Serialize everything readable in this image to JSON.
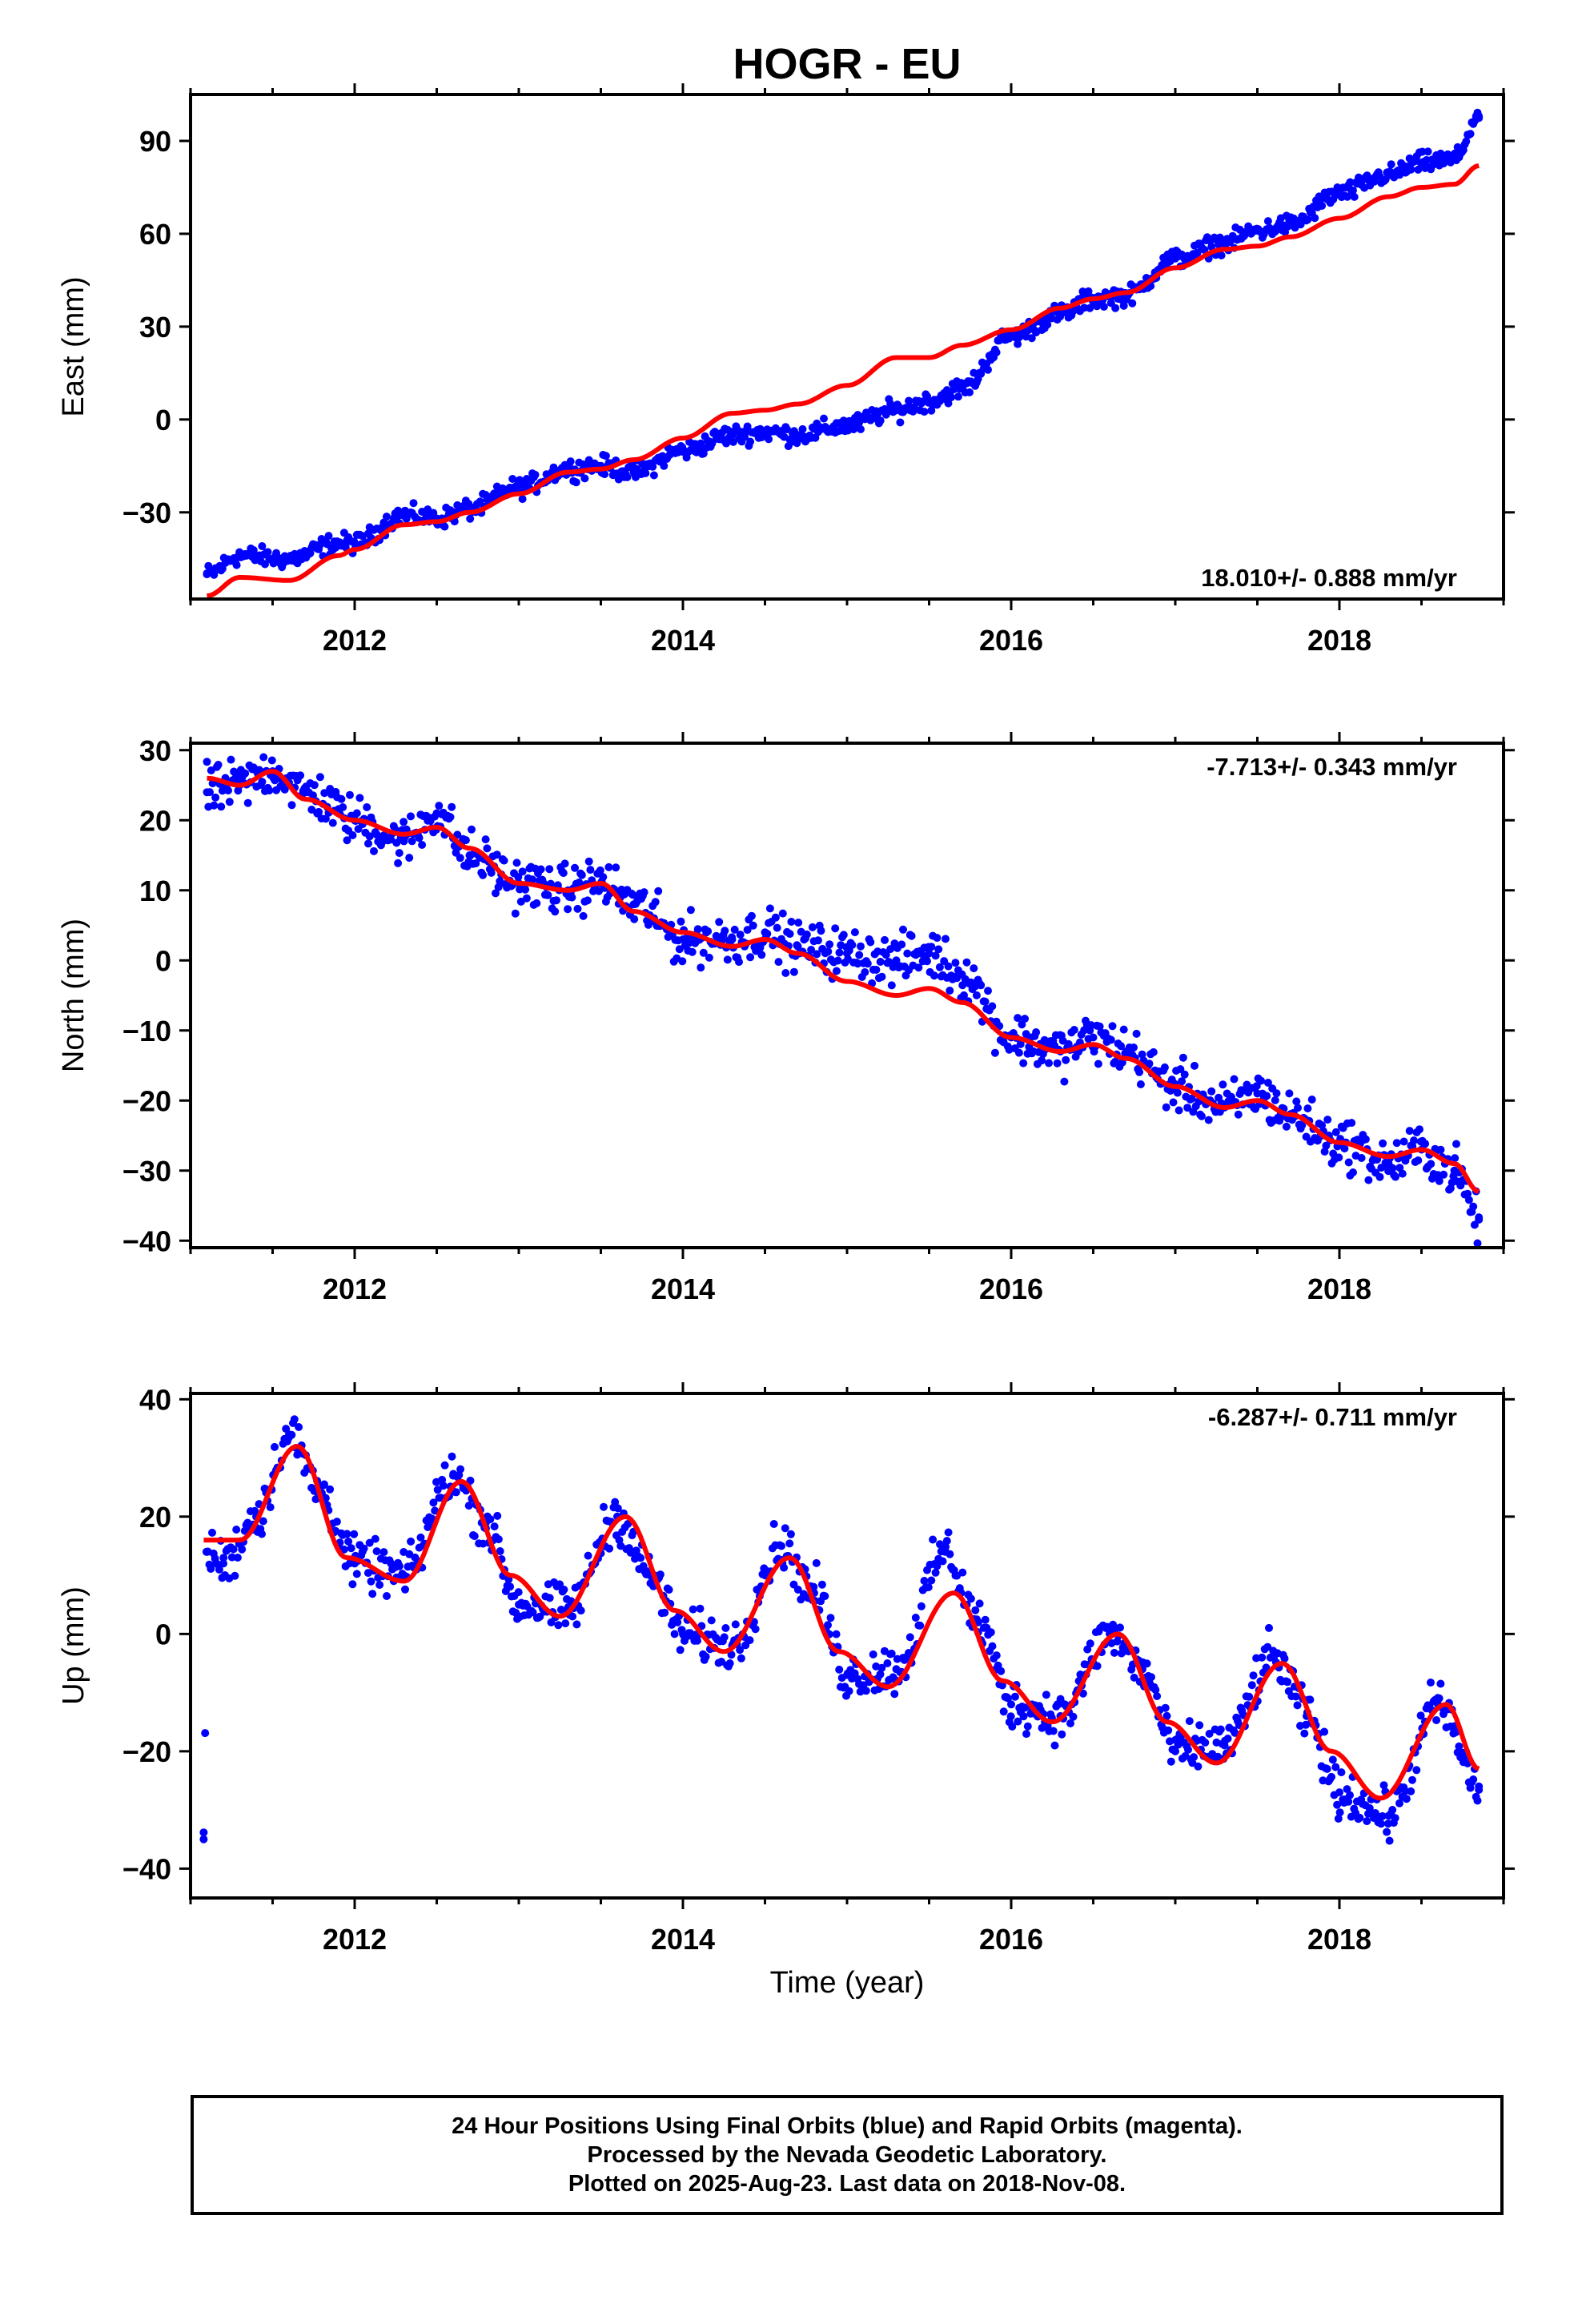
{
  "chart_data": {
    "type": "scatter",
    "title": "HOGR - EU",
    "xlabel": "Time (year)",
    "xlim": [
      2011.0,
      2019.0
    ],
    "x_ticks": [
      "2012",
      "2014",
      "2016",
      "2018"
    ],
    "panels": [
      {
        "ylabel": "East (mm)",
        "ylim": [
          -58,
          105
        ],
        "y_ticks": [
          "90",
          "60",
          "30",
          "0",
          "−30"
        ],
        "rate_label": "18.010+/- 0.888 mm/yr",
        "series": [
          {
            "kind": "scatter",
            "color": "#0000ff",
            "x": [
              2011.1,
              2011.3,
              2011.6,
              2011.9,
              2012.0,
              2012.3,
              2012.5,
              2012.7,
              2013.0,
              2013.3,
              2013.5,
              2013.7,
              2014.0,
              2014.3,
              2014.5,
              2014.7,
              2015.0,
              2015.3,
              2015.5,
              2015.7,
              2016.0,
              2016.3,
              2016.5,
              2016.7,
              2017.0,
              2017.3,
              2017.5,
              2017.7,
              2018.0,
              2018.3,
              2018.5,
              2018.7,
              2018.85
            ],
            "y": [
              -50,
              -44,
              -45,
              -40,
              -40,
              -31,
              -32,
              -29,
              -22,
              -16,
              -15,
              -17,
              -10,
              -5,
              -4,
              -5,
              -2,
              3,
              6,
              10,
              27,
              34,
              39,
              40,
              52,
              57,
              61,
              63,
              73,
              79,
              83,
              84,
              98
            ]
          },
          {
            "kind": "line",
            "color": "#ff0000",
            "x": [
              2011.1,
              2011.3,
              2011.6,
              2011.9,
              2012.0,
              2012.3,
              2012.5,
              2012.7,
              2013.0,
              2013.3,
              2013.5,
              2013.7,
              2014.0,
              2014.3,
              2014.5,
              2014.7,
              2015.0,
              2015.3,
              2015.5,
              2015.7,
              2016.0,
              2016.3,
              2016.5,
              2016.7,
              2017.0,
              2017.3,
              2017.5,
              2017.7,
              2018.0,
              2018.3,
              2018.5,
              2018.7,
              2018.85
            ],
            "y": [
              -57,
              -51,
              -52,
              -44,
              -42,
              -34,
              -33,
              -30,
              -24,
              -17,
              -16,
              -13,
              -6,
              2,
              3,
              5,
              11,
              20,
              20,
              24,
              29,
              36,
              39,
              41,
              49,
              55,
              56,
              59,
              65,
              72,
              75,
              76,
              82
            ]
          }
        ]
      },
      {
        "ylabel": "North (mm)",
        "ylim": [
          -41,
          31
        ],
        "y_ticks": [
          "30",
          "20",
          "10",
          "0",
          "−10",
          "−20",
          "−30",
          "−40"
        ],
        "rate_label": "-7.713+/- 0.343 mm/yr",
        "series": [
          {
            "kind": "scatter",
            "color": "#0000ff",
            "x": [
              2011.1,
              2011.3,
              2011.5,
              2011.7,
              2012.0,
              2012.3,
              2012.5,
              2012.7,
              2013.0,
              2013.3,
              2013.5,
              2013.7,
              2014.0,
              2014.3,
              2014.5,
              2014.7,
              2015.0,
              2015.3,
              2015.5,
              2015.7,
              2016.0,
              2016.3,
              2016.5,
              2016.7,
              2017.0,
              2017.3,
              2017.5,
              2017.7,
              2018.0,
              2018.3,
              2018.5,
              2018.7,
              2018.85
            ],
            "y": [
              24,
              25,
              27,
              24,
              20,
              17,
              21,
              15,
              11,
              10,
              11,
              8,
              3,
              3,
              4,
              2,
              1,
              0,
              1,
              -2,
              -11,
              -13,
              -11,
              -13,
              -18,
              -21,
              -19,
              -22,
              -26,
              -29,
              -27,
              -30,
              -37
            ]
          },
          {
            "kind": "line",
            "color": "#ff0000",
            "x": [
              2011.1,
              2011.3,
              2011.5,
              2011.7,
              2012.0,
              2012.3,
              2012.5,
              2012.7,
              2013.0,
              2013.3,
              2013.5,
              2013.7,
              2014.0,
              2014.3,
              2014.5,
              2014.7,
              2015.0,
              2015.3,
              2015.5,
              2015.7,
              2016.0,
              2016.3,
              2016.5,
              2016.7,
              2017.0,
              2017.3,
              2017.5,
              2017.7,
              2018.0,
              2018.3,
              2018.5,
              2018.7,
              2018.85
            ],
            "y": [
              26,
              25,
              27,
              23,
              20,
              18,
              19,
              16,
              11,
              10,
              11,
              7,
              4,
              2,
              3,
              1,
              -3,
              -5,
              -4,
              -6,
              -11,
              -13,
              -12,
              -14,
              -18,
              -21,
              -20,
              -22,
              -26,
              -28,
              -27,
              -29,
              -33
            ]
          }
        ]
      },
      {
        "ylabel": "Up (mm)",
        "ylim": [
          -45,
          41
        ],
        "y_ticks": [
          "40",
          "20",
          "0",
          "−20",
          "−40"
        ],
        "rate_label": "-6.287+/- 0.711 mm/yr",
        "series": [
          {
            "kind": "scatter",
            "color": "#0000ff",
            "x": [
              2011.08,
              2011.1,
              2011.2,
              2011.4,
              2011.6,
              2011.8,
              2012.0,
              2012.3,
              2012.6,
              2012.8,
              2013.0,
              2013.3,
              2013.6,
              2013.8,
              2014.0,
              2014.3,
              2014.6,
              2014.8,
              2015.0,
              2015.3,
              2015.6,
              2015.8,
              2016.0,
              2016.3,
              2016.6,
              2016.8,
              2017.0,
              2017.3,
              2017.6,
              2017.8,
              2018.0,
              2018.3,
              2018.6,
              2018.85
            ],
            "y": [
              -35,
              14,
              12,
              20,
              34,
              24,
              12,
              10,
              27,
              19,
              5,
              4,
              20,
              10,
              0,
              -2,
              15,
              7,
              -7,
              -6,
              14,
              2,
              -12,
              -14,
              0,
              -6,
              -20,
              -19,
              -4,
              -14,
              -27,
              -31,
              -12,
              -26
            ]
          },
          {
            "kind": "line",
            "color": "#ff0000",
            "x": [
              2011.08,
              2011.3,
              2011.65,
              2011.95,
              2012.3,
              2012.65,
              2012.95,
              2013.25,
              2013.65,
              2013.95,
              2014.25,
              2014.65,
              2014.95,
              2015.25,
              2015.65,
              2015.95,
              2016.25,
              2016.65,
              2016.95,
              2017.25,
              2017.65,
              2017.95,
              2018.25,
              2018.65,
              2018.85
            ],
            "y": [
              16,
              16,
              32,
              13,
              9,
              26,
              10,
              3,
              20,
              4,
              -3,
              13,
              -3,
              -9,
              7,
              -8,
              -15,
              0,
              -15,
              -22,
              -5,
              -20,
              -28,
              -12,
              -23
            ]
          }
        ]
      }
    ]
  },
  "footer": {
    "line1": "24 Hour Positions Using Final Orbits (blue) and Rapid Orbits (magenta).",
    "line2": "Processed by the Nevada Geodetic Laboratory.",
    "line3": "Plotted on 2025-Aug-23. Last data on 2018-Nov-08."
  }
}
